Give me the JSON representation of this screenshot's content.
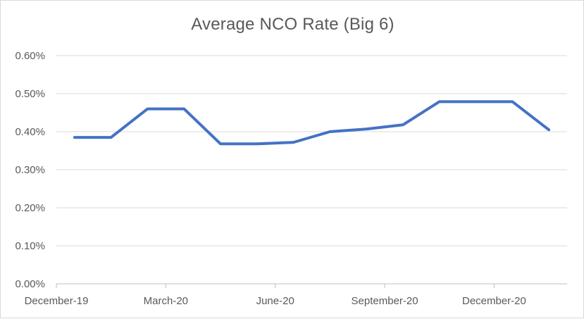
{
  "chart_data": {
    "type": "line",
    "title": "Average NCO Rate (Big 6)",
    "xlabel": "",
    "ylabel": "",
    "x": [
      "2019-12",
      "2020-01",
      "2020-02",
      "2020-03",
      "2020-04",
      "2020-05",
      "2020-06",
      "2020-07",
      "2020-08",
      "2020-09",
      "2020-10",
      "2020-11",
      "2020-12",
      "2021-01"
    ],
    "x_tick_labels": [
      {
        "label": "December-19",
        "index": 0
      },
      {
        "label": "March-20",
        "index": 3
      },
      {
        "label": "June-20",
        "index": 6
      },
      {
        "label": "September-20",
        "index": 9
      },
      {
        "label": "December-20",
        "index": 12
      }
    ],
    "series": [
      {
        "name": "",
        "color": "#4472c4",
        "values": [
          0.00385,
          0.00385,
          0.0046,
          0.0046,
          0.00368,
          0.00368,
          0.00372,
          0.004,
          0.00407,
          0.00418,
          0.00479,
          0.00479,
          0.00479,
          0.00405
        ]
      }
    ],
    "ylim": [
      0,
      0.006
    ],
    "yticks": [
      {
        "value": 0,
        "label": "0.00%"
      },
      {
        "value": 0.001,
        "label": "0.10%"
      },
      {
        "value": 0.002,
        "label": "0.20%"
      },
      {
        "value": 0.003,
        "label": "0.30%"
      },
      {
        "value": 0.004,
        "label": "0.40%"
      },
      {
        "value": 0.005,
        "label": "0.50%"
      },
      {
        "value": 0.006,
        "label": "0.60%"
      }
    ],
    "grid": true,
    "legend": "none"
  }
}
